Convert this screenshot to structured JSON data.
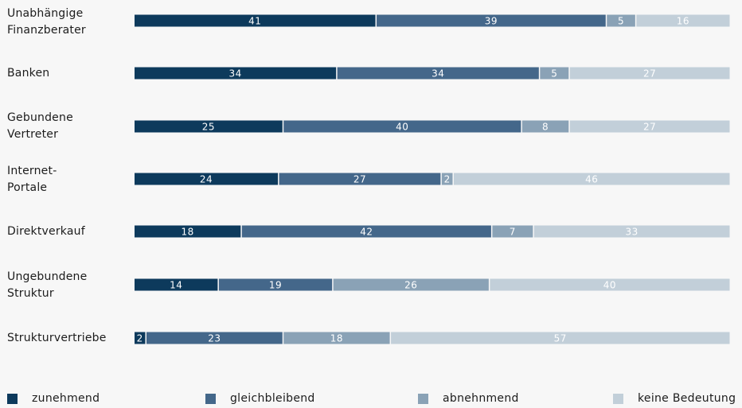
{
  "chart_data": {
    "type": "bar",
    "stacked": true,
    "orientation": "horizontal",
    "normalized": true,
    "categories": [
      "Unabhängige\nFinanzberater",
      "Banken",
      "Gebundene\nVertreter",
      "Internet-\nPortale",
      "Direktverkauf",
      "Ungebundene\nStruktur",
      "Strukturvertriebe"
    ],
    "series": [
      {
        "name": "zunehmend",
        "color": "#0d3a5c",
        "values": [
          41,
          34,
          25,
          24,
          18,
          14,
          2
        ]
      },
      {
        "name": "gleichbleibend",
        "color": "#44678a",
        "values": [
          39,
          34,
          40,
          27,
          42,
          19,
          23
        ]
      },
      {
        "name": "abnehnmend",
        "color": "#8aa2b6",
        "values": [
          5,
          5,
          8,
          2,
          7,
          26,
          18
        ]
      },
      {
        "name": "keine Bedeutung",
        "color": "#c2cfd9",
        "values": [
          16,
          27,
          27,
          46,
          33,
          40,
          57
        ]
      }
    ],
    "legend_position": "bottom",
    "grid": false
  }
}
